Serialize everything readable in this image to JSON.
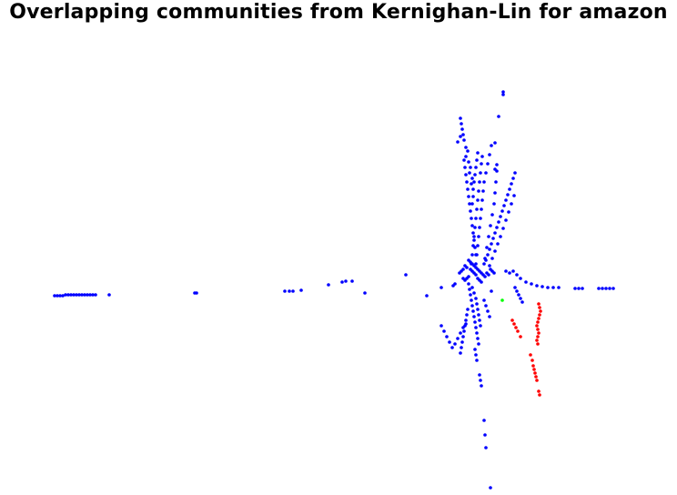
{
  "chart_data": {
    "type": "scatter",
    "title": "Overlapping communities from Kernighan-Lin for amazon",
    "xlabel": "",
    "ylabel": "",
    "axes_visible": false,
    "grid": false,
    "legend": "none",
    "series": [
      {
        "color": "#0000ff",
        "points": [
          [
            60,
            325
          ],
          [
            63,
            325
          ],
          [
            66,
            325
          ],
          [
            69,
            325
          ],
          [
            72,
            324
          ],
          [
            75,
            324
          ],
          [
            78,
            324
          ],
          [
            81,
            324
          ],
          [
            84,
            324
          ],
          [
            87,
            324
          ],
          [
            90,
            324
          ],
          [
            93,
            324
          ],
          [
            96,
            324
          ],
          [
            99,
            324
          ],
          [
            102,
            324
          ],
          [
            105,
            324
          ],
          [
            120,
            324
          ],
          [
            214,
            322
          ],
          [
            216,
            322
          ],
          [
            313,
            320
          ],
          [
            318,
            320
          ],
          [
            322,
            320
          ],
          [
            331,
            319
          ],
          [
            361,
            313
          ],
          [
            376,
            310
          ],
          [
            380,
            309
          ],
          [
            387,
            309
          ],
          [
            401,
            322
          ],
          [
            446,
            302
          ],
          [
            469,
            325
          ],
          [
            485,
            316
          ],
          [
            498,
            314
          ],
          [
            500,
            312
          ],
          [
            553,
            101
          ],
          [
            553,
            104
          ],
          [
            548,
            128
          ],
          [
            544,
            157
          ],
          [
            546,
            181
          ],
          [
            544,
            186
          ],
          [
            506,
            130
          ],
          [
            507,
            136
          ],
          [
            508,
            142
          ],
          [
            509,
            148
          ],
          [
            510,
            154
          ],
          [
            506,
            150
          ],
          [
            503,
            156
          ],
          [
            512,
            162
          ],
          [
            514,
            166
          ],
          [
            512,
            172
          ],
          [
            515,
            178
          ],
          [
            517,
            184
          ],
          [
            516,
            190
          ],
          [
            519,
            196
          ],
          [
            518,
            202
          ],
          [
            520,
            208
          ],
          [
            510,
            176
          ],
          [
            511,
            184
          ],
          [
            512,
            192
          ],
          [
            513,
            200
          ],
          [
            514,
            208
          ],
          [
            515,
            216
          ],
          [
            516,
            224
          ],
          [
            517,
            232
          ],
          [
            518,
            240
          ],
          [
            519,
            248
          ],
          [
            520,
            256
          ],
          [
            521,
            264
          ],
          [
            522,
            272
          ],
          [
            523,
            280
          ],
          [
            525,
            168
          ],
          [
            524,
            176
          ],
          [
            523,
            184
          ],
          [
            522,
            192
          ],
          [
            521,
            200
          ],
          [
            520,
            216
          ],
          [
            519,
            224
          ],
          [
            530,
            172
          ],
          [
            529,
            180
          ],
          [
            528,
            190
          ],
          [
            527,
            200
          ],
          [
            526,
            210
          ],
          [
            525,
            220
          ],
          [
            524,
            230
          ],
          [
            523,
            240
          ],
          [
            522,
            250
          ],
          [
            521,
            260
          ],
          [
            520,
            270
          ],
          [
            519,
            280
          ],
          [
            518,
            290
          ],
          [
            540,
            160
          ],
          [
            538,
            170
          ],
          [
            536,
            180
          ],
          [
            534,
            190
          ],
          [
            532,
            200
          ],
          [
            531,
            210
          ],
          [
            530,
            220
          ],
          [
            529,
            230
          ],
          [
            528,
            240
          ],
          [
            527,
            250
          ],
          [
            526,
            260
          ],
          [
            525,
            270
          ],
          [
            524,
            280
          ],
          [
            523,
            290
          ],
          [
            566,
            190
          ],
          [
            564,
            196
          ],
          [
            562,
            202
          ],
          [
            560,
            208
          ],
          [
            558,
            214
          ],
          [
            556,
            220
          ],
          [
            554,
            226
          ],
          [
            552,
            232
          ],
          [
            550,
            238
          ],
          [
            548,
            244
          ],
          [
            546,
            250
          ],
          [
            544,
            256
          ],
          [
            542,
            262
          ],
          [
            540,
            268
          ],
          [
            538,
            274
          ],
          [
            536,
            280
          ],
          [
            534,
            286
          ],
          [
            532,
            290
          ],
          [
            546,
            188
          ],
          [
            545,
            200
          ],
          [
            544,
            212
          ],
          [
            543,
            224
          ],
          [
            541,
            236
          ],
          [
            539,
            248
          ],
          [
            537,
            260
          ],
          [
            535,
            272
          ],
          [
            533,
            284
          ],
          [
            565,
            215
          ],
          [
            562,
            224
          ],
          [
            559,
            233
          ],
          [
            556,
            242
          ],
          [
            553,
            251
          ],
          [
            550,
            260
          ],
          [
            547,
            268
          ],
          [
            544,
            276
          ],
          [
            541,
            284
          ],
          [
            538,
            292
          ],
          [
            515,
            286
          ],
          [
            517,
            288
          ],
          [
            519,
            290
          ],
          [
            521,
            292
          ],
          [
            523,
            294
          ],
          [
            511,
            292
          ],
          [
            513,
            294
          ],
          [
            509,
            296
          ],
          [
            507,
            298
          ],
          [
            505,
            300
          ],
          [
            525,
            296
          ],
          [
            527,
            298
          ],
          [
            529,
            300
          ],
          [
            531,
            302
          ],
          [
            533,
            304
          ],
          [
            535,
            300
          ],
          [
            537,
            302
          ],
          [
            539,
            296
          ],
          [
            541,
            298
          ],
          [
            543,
            300
          ],
          [
            517,
            296
          ],
          [
            519,
            298
          ],
          [
            521,
            300
          ],
          [
            523,
            302
          ],
          [
            515,
            304
          ],
          [
            513,
            306
          ],
          [
            511,
            308
          ],
          [
            509,
            306
          ],
          [
            525,
            306
          ],
          [
            527,
            308
          ],
          [
            529,
            310
          ],
          [
            556,
            298
          ],
          [
            560,
            300
          ],
          [
            564,
            298
          ],
          [
            568,
            302
          ],
          [
            572,
            306
          ],
          [
            578,
            310
          ],
          [
            584,
            312
          ],
          [
            590,
            314
          ],
          [
            596,
            315
          ],
          [
            602,
            316
          ],
          [
            608,
            316
          ],
          [
            614,
            316
          ],
          [
            632,
            317
          ],
          [
            636,
            317
          ],
          [
            640,
            317
          ],
          [
            658,
            317
          ],
          [
            662,
            317
          ],
          [
            666,
            317
          ],
          [
            670,
            317
          ],
          [
            674,
            317
          ],
          [
            566,
            316
          ],
          [
            568,
            320
          ],
          [
            570,
            324
          ],
          [
            572,
            328
          ],
          [
            574,
            332
          ],
          [
            515,
            312
          ],
          [
            516,
            318
          ],
          [
            517,
            324
          ],
          [
            518,
            330
          ],
          [
            519,
            336
          ],
          [
            520,
            342
          ],
          [
            521,
            348
          ],
          [
            522,
            354
          ],
          [
            523,
            360
          ],
          [
            524,
            366
          ],
          [
            525,
            372
          ],
          [
            526,
            378
          ],
          [
            514,
            340
          ],
          [
            513,
            346
          ],
          [
            512,
            352
          ],
          [
            511,
            358
          ],
          [
            510,
            364
          ],
          [
            509,
            370
          ],
          [
            508,
            376
          ],
          [
            507,
            382
          ],
          [
            506,
            388
          ],
          [
            519,
            316
          ],
          [
            521,
            322
          ],
          [
            523,
            328
          ],
          [
            524,
            334
          ],
          [
            525,
            340
          ],
          [
            526,
            346
          ],
          [
            527,
            352
          ],
          [
            528,
            358
          ],
          [
            522,
            384
          ],
          [
            523,
            390
          ],
          [
            524,
            396
          ],
          [
            485,
            358
          ],
          [
            488,
            364
          ],
          [
            491,
            370
          ],
          [
            494,
            376
          ],
          [
            497,
            382
          ],
          [
            500,
            378
          ],
          [
            503,
            372
          ],
          [
            506,
            366
          ],
          [
            509,
            360
          ],
          [
            512,
            356
          ],
          [
            532,
            330
          ],
          [
            534,
            336
          ],
          [
            536,
            342
          ],
          [
            538,
            348
          ],
          [
            540,
            320
          ],
          [
            527,
            412
          ],
          [
            528,
            418
          ],
          [
            529,
            424
          ],
          [
            532,
            462
          ],
          [
            533,
            478
          ],
          [
            534,
            492
          ],
          [
            539,
            536
          ]
        ]
      },
      {
        "color": "#ff0000",
        "points": [
          [
            592,
            334
          ],
          [
            593,
            338
          ],
          [
            594,
            342
          ],
          [
            593,
            346
          ],
          [
            592,
            350
          ],
          [
            591,
            354
          ],
          [
            590,
            358
          ],
          [
            591,
            362
          ],
          [
            592,
            366
          ],
          [
            591,
            370
          ],
          [
            590,
            374
          ],
          [
            591,
            378
          ],
          [
            563,
            352
          ],
          [
            565,
            356
          ],
          [
            567,
            360
          ],
          [
            569,
            364
          ],
          [
            572,
            370
          ],
          [
            583,
            390
          ],
          [
            585,
            396
          ],
          [
            586,
            402
          ],
          [
            587,
            406
          ],
          [
            588,
            410
          ],
          [
            589,
            414
          ],
          [
            590,
            418
          ],
          [
            592,
            430
          ],
          [
            593,
            434
          ]
        ]
      },
      {
        "color": "#00ff00",
        "points": [
          [
            552,
            330
          ]
        ]
      }
    ]
  }
}
